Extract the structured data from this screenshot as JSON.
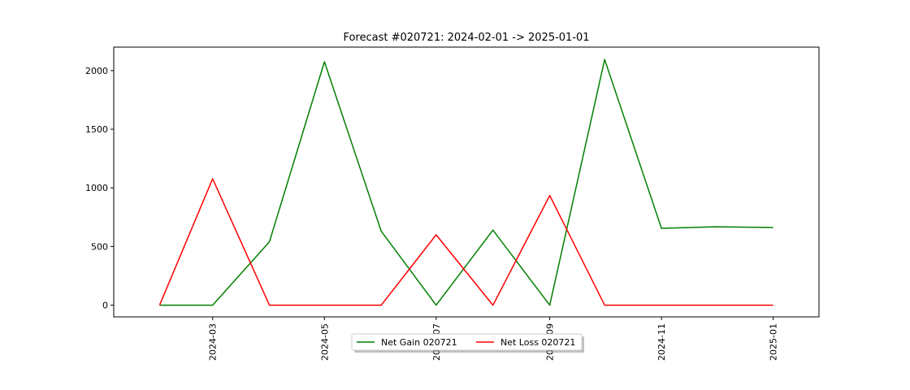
{
  "chart_data": {
    "type": "line",
    "title": "Forecast #020721: 2024-02-01 -> 2025-01-01",
    "xlabel": "",
    "ylabel": "",
    "x": [
      "2024-02-01",
      "2024-03-01",
      "2024-04-01",
      "2024-05-01",
      "2024-06-01",
      "2024-07-01",
      "2024-08-01",
      "2024-09-01",
      "2024-10-01",
      "2024-11-01",
      "2024-12-01",
      "2025-01-01"
    ],
    "x_ticks": [
      "2024-03",
      "2024-05",
      "2024-07",
      "2024-09",
      "2024-11",
      "2025-01"
    ],
    "xlim": [
      "2024-01-07",
      "2025-01-26"
    ],
    "ylim": [
      -100,
      2200
    ],
    "y_ticks": [
      0,
      500,
      1000,
      1500,
      2000
    ],
    "grid": false,
    "legend_position": "bottom-center",
    "series": [
      {
        "name": "Net Gain 020721",
        "color": "#008000",
        "values": [
          0,
          0,
          540,
          2075,
          630,
          0,
          640,
          0,
          2095,
          655,
          668,
          662
        ]
      },
      {
        "name": "Net Loss 020721",
        "color": "#ff0000",
        "values": [
          0,
          1078,
          0,
          0,
          0,
          600,
          0,
          935,
          0,
          0,
          0,
          0
        ]
      }
    ]
  }
}
